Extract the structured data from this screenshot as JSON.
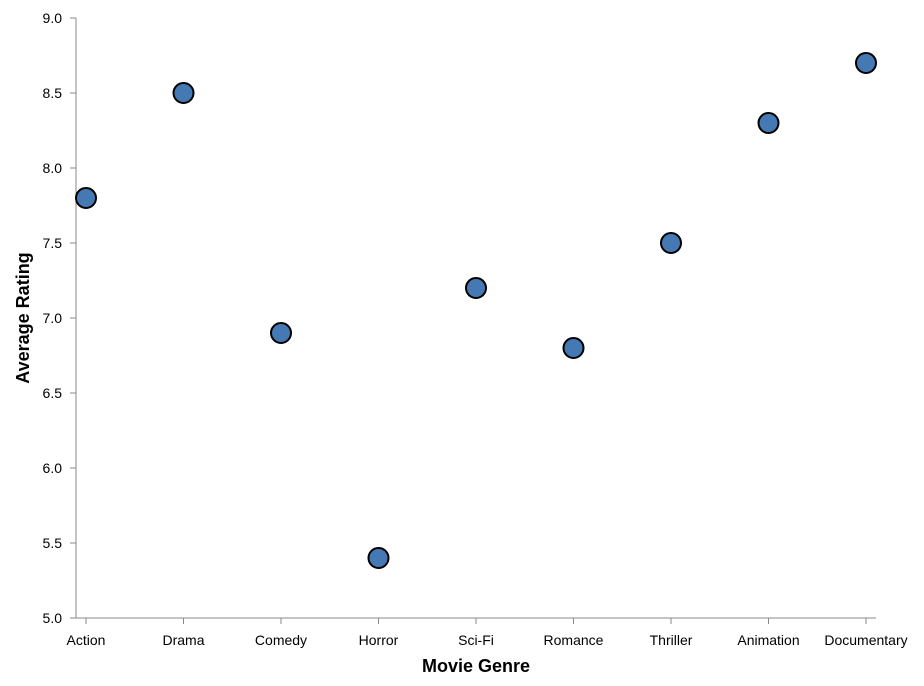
{
  "chart_data": {
    "type": "scatter",
    "title": "",
    "xlabel": "Movie Genre",
    "ylabel": "Average Rating",
    "categories": [
      "Action",
      "Drama",
      "Comedy",
      "Horror",
      "Sci-Fi",
      "Romance",
      "Thriller",
      "Animation",
      "Documentary"
    ],
    "values": [
      7.8,
      8.5,
      6.9,
      5.4,
      7.2,
      6.8,
      7.5,
      8.3,
      8.7
    ],
    "ylim": [
      5.0,
      9.0
    ],
    "yticks": [
      "5.0",
      "5.5",
      "6.0",
      "6.5",
      "7.0",
      "7.5",
      "8.0",
      "8.5",
      "9.0"
    ],
    "grid": false,
    "legend": "none",
    "point_color": "#4479b4",
    "point_stroke": "#000000"
  }
}
